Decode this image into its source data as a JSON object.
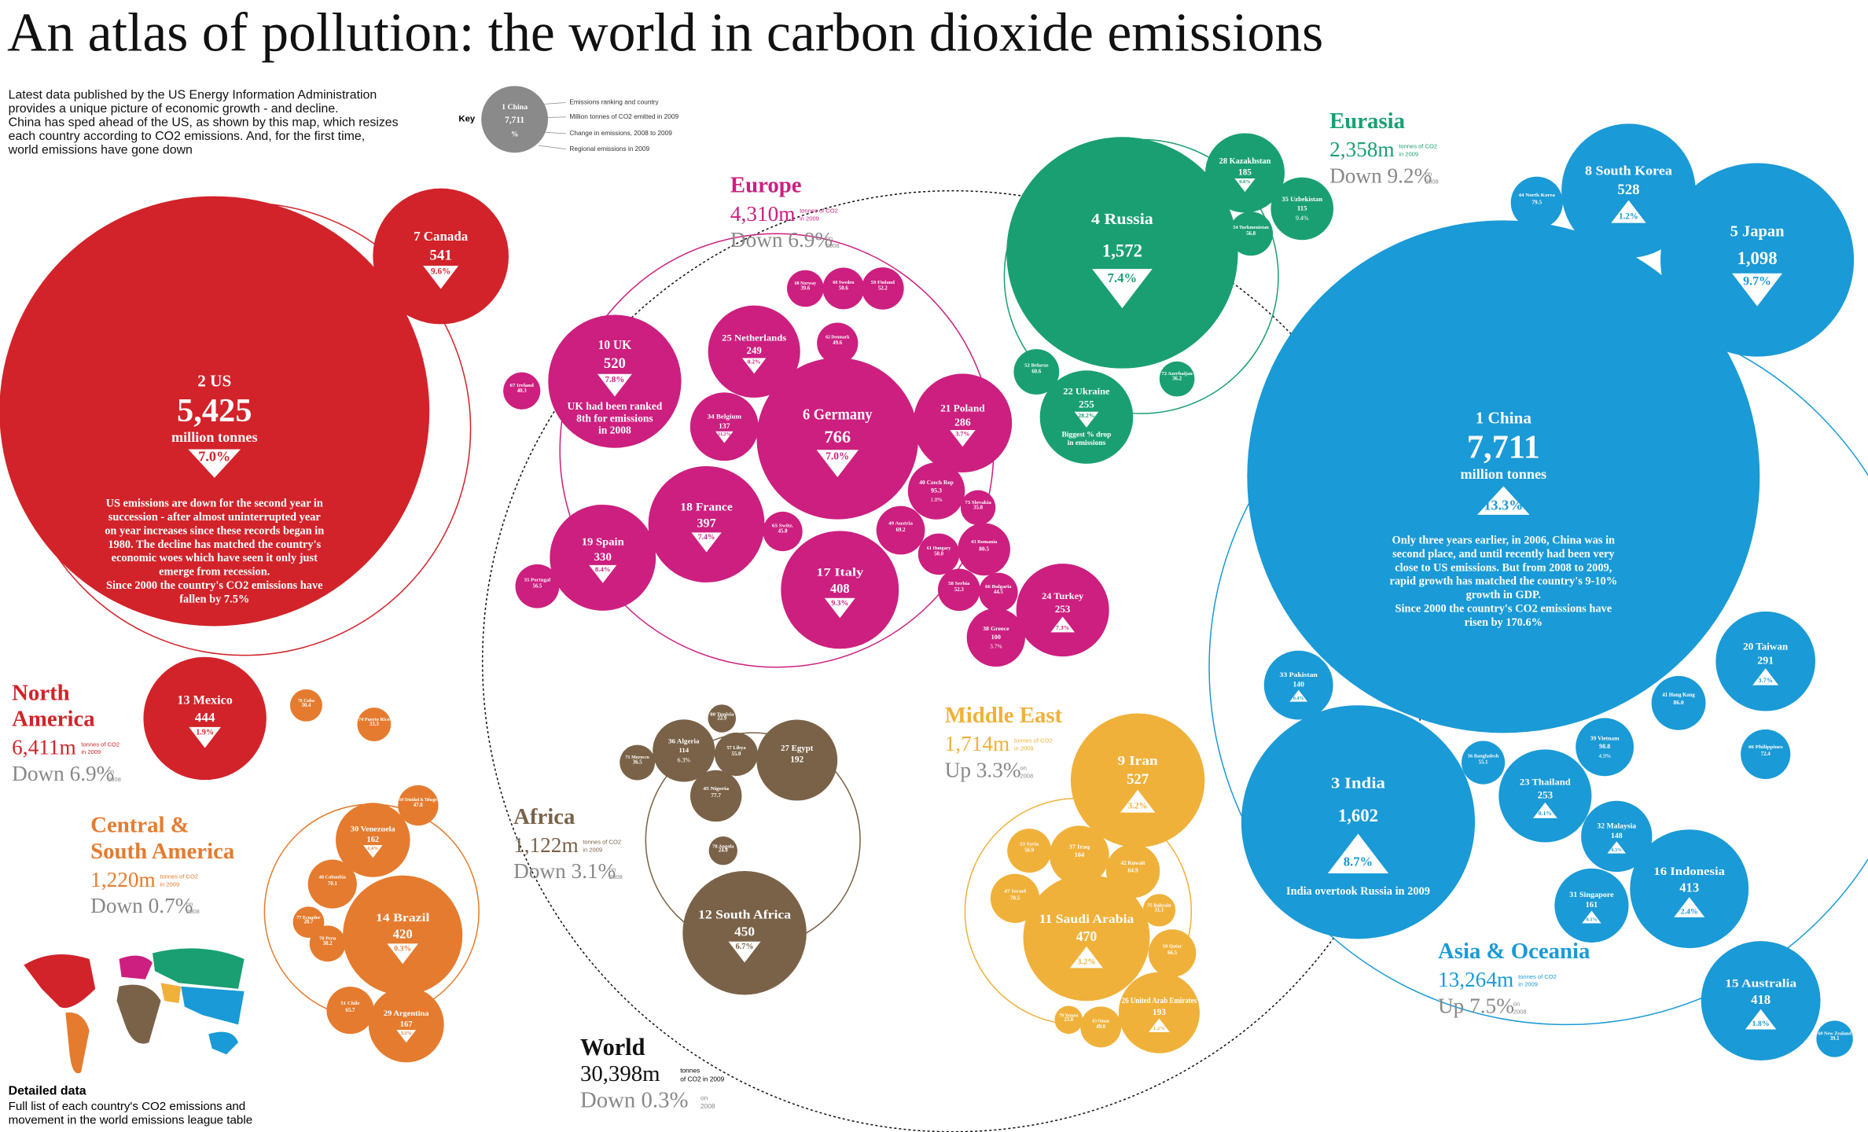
{
  "title": "An atlas of pollution: the world in carbon dioxide emissions",
  "intro": [
    "Latest data published by the US Energy Information Administration",
    "provides a unique picture of economic growth - and decline.",
    "China has sped ahead of the US, as shown by this map, which resizes",
    "each country according to CO2 emissions. And, for the first time,",
    "world emissions have gone down"
  ],
  "key": {
    "heading": "Key",
    "sample": [
      "1 China",
      "7,711",
      "%"
    ],
    "legend": [
      "Emissions ranking and country",
      "Million tonnes of CO2 emitted in 2009",
      "Change in emissions, 2008 to 2009",
      "Regional emissions in 2009"
    ]
  },
  "world": {
    "name": "World",
    "total": "30,398m",
    "unit": [
      "tonnes",
      "of CO2 in 2009"
    ],
    "change": "Down 0.3%",
    "on": [
      "on",
      "2008"
    ]
  },
  "regions": [
    {
      "name": [
        "North",
        "America"
      ],
      "color": "#d2232a",
      "total": "6,411m",
      "unit": [
        "tonnes of CO2",
        "in 2009"
      ],
      "change": "Down 6.9%",
      "on": [
        "on",
        "2008"
      ],
      "bubbles": [
        {
          "label": "2 US",
          "value": 5425,
          "value_label": "5,425",
          "unit": "million tonnes",
          "change": "7.0%",
          "trend": "down",
          "note": [
            "US emissions are down for the second year in",
            "succession - after almost uninterrupted year",
            "on year increases since these records began in",
            "1980. The decline has matched the country's",
            "economic woes which have seen it only just",
            "emerge from recession.",
            "Since 2000 the country's CO2 emissions have",
            "fallen by 7.5%"
          ]
        },
        {
          "label": "7 Canada",
          "value": 541,
          "change": "9.6%",
          "trend": "down"
        },
        {
          "label": "13 Mexico",
          "value": 444,
          "change": "1.9%",
          "trend": "down"
        }
      ]
    },
    {
      "name": [
        "Europe"
      ],
      "color": "#cc1f7f",
      "total": "4,310m",
      "unit": [
        "tonnes of CO2",
        "in 2009"
      ],
      "change": "Down 6.9%",
      "on": [
        "on",
        "2008"
      ],
      "bubbles": [
        {
          "label": "6 Germany",
          "value": 766,
          "change": "7.0%",
          "trend": "down"
        },
        {
          "label": "10 UK",
          "value": 520,
          "change": "7.8%",
          "trend": "down",
          "note": [
            "UK had been ranked",
            "8th for emissions",
            "in 2008"
          ]
        },
        {
          "label": "18 France",
          "value": 397,
          "change": "7.4%",
          "trend": "down"
        },
        {
          "label": "19 Spain",
          "value": 330,
          "change": "8.4%",
          "trend": "down"
        },
        {
          "label": "17 Italy",
          "value": 408,
          "change": "9.3%",
          "trend": "down"
        },
        {
          "label": "25 Netherlands",
          "value": 249,
          "change": "0.2%",
          "trend": "down"
        },
        {
          "label": "21 Poland",
          "value": 286,
          "change": "3.7%",
          "trend": "down"
        },
        {
          "label": "24 Turkey",
          "value": 253,
          "change": "7.3%",
          "trend": "up"
        },
        {
          "label": "34 Belgium",
          "value": 137,
          "change": "11.2%",
          "trend": "down"
        },
        {
          "label": "38 Greece",
          "value": 100,
          "change": "3.7%",
          "trend": "down"
        },
        {
          "label": "40 Czech Rep",
          "value": 95.3,
          "change": "1.8%",
          "trend": "down"
        },
        {
          "label": "43 Romania",
          "value": 80.5
        },
        {
          "label": "49 Austria",
          "value": 69.2
        },
        {
          "label": "58 Serbia",
          "value": 52.3
        },
        {
          "label": "66 Bulgaria",
          "value": 44.5
        },
        {
          "label": "73 Slovakia",
          "value": 35.8
        },
        {
          "label": "61 Hungary",
          "value": 50.0,
          "value_label": "50.0"
        },
        {
          "label": "65 Switz.",
          "value": 45.8
        },
        {
          "label": "68 Norway",
          "value": 39.6
        },
        {
          "label": "60 Sweden",
          "value": 50.6
        },
        {
          "label": "59 Finland",
          "value": 52.2
        },
        {
          "label": "62 Denmark",
          "value": 49.6
        },
        {
          "label": "67 Ireland",
          "value": 40.3
        },
        {
          "label": "55 Portugal",
          "value": 56.5
        }
      ]
    },
    {
      "name": [
        "Eurasia"
      ],
      "color": "#1a9f73",
      "total": "2,358m",
      "unit": [
        "tonnes of CO2",
        "in 2009"
      ],
      "change": "Down 9.2%",
      "on": [
        "on",
        "2008"
      ],
      "bubbles": [
        {
          "label": "4 Russia",
          "value": 1572,
          "value_label": "1,572",
          "change": "7.4%",
          "trend": "down"
        },
        {
          "label": "22 Ukraine",
          "value": 255,
          "change": "28.2%",
          "trend": "down",
          "note": [
            "Biggest % drop",
            "in emissions"
          ]
        },
        {
          "label": "28 Kazakhstan",
          "value": 185,
          "change": "9.8%",
          "trend": "down"
        },
        {
          "label": "35 Uzbekistan",
          "value": 115,
          "change": "9.4%",
          "trend": "down"
        },
        {
          "label": "54 Turkmenistan",
          "value": 56.8
        },
        {
          "label": "52 Belarus",
          "value": 60.6
        },
        {
          "label": "72 Azerbaijan",
          "value": 36.2
        }
      ]
    },
    {
      "name": [
        "Asia & Oceania"
      ],
      "color": "#1a9ad6",
      "total": "13,264m",
      "unit": [
        "tonnes of CO2",
        "in 2009"
      ],
      "change": "Up 7.5%",
      "on": [
        "on",
        "2008"
      ],
      "bubbles": [
        {
          "label": "1 China",
          "value": 7711,
          "value_label": "7,711",
          "unit": "million tonnes",
          "change": "13.3%",
          "trend": "up",
          "note": [
            "Only three years earlier, in 2006, China was in",
            "second place, and until recently had been very",
            "close to US emissions. But from 2008 to 2009,",
            "rapid growth has matched the country's 9-10%",
            "growth in GDP.",
            "Since 2000 the country's CO2 emissions have",
            "risen by 170.6%"
          ]
        },
        {
          "label": "3 India",
          "value": 1602,
          "value_label": "1,602",
          "change": "8.7%",
          "trend": "up",
          "note": [
            "India overtook Russia in 2009"
          ]
        },
        {
          "label": "5 Japan",
          "value": 1098,
          "value_label": "1,098",
          "change": "9.7%",
          "trend": "down"
        },
        {
          "label": "8 South Korea",
          "value": 528,
          "change": "1.2%",
          "trend": "up"
        },
        {
          "label": "15 Australia",
          "value": 418,
          "change": "1.8%",
          "trend": "up"
        },
        {
          "label": "16 Indonesia",
          "value": 413,
          "change": "2.4%",
          "trend": "up"
        },
        {
          "label": "20 Taiwan",
          "value": 291,
          "change": "3.7%",
          "trend": "up"
        },
        {
          "label": "23 Thailand",
          "value": 253,
          "change": "0.1%",
          "trend": "up"
        },
        {
          "label": "31 Singapore",
          "value": 161,
          "change": "0.3%",
          "trend": "up"
        },
        {
          "label": "32 Malaysia",
          "value": 148,
          "change": "0.3%",
          "trend": "up"
        },
        {
          "label": "33 Pakistan",
          "value": 140,
          "change": "0.4%",
          "trend": "up"
        },
        {
          "label": "39 Vietnam",
          "value": 98.8,
          "change": "4.9%",
          "trend": "up"
        },
        {
          "label": "41 Hong Kong",
          "value": 86.0,
          "value_label": "86.0"
        },
        {
          "label": "44 North Korea",
          "value": 79.5
        },
        {
          "label": "46 Philippines",
          "value": 72.4
        },
        {
          "label": "56 Bangladesh",
          "value": 55.1
        },
        {
          "label": "69 New Zealand",
          "value": 39.1
        }
      ]
    },
    {
      "name": [
        "Middle East"
      ],
      "color": "#f0b13a",
      "total": "1,714m",
      "unit": [
        "tonnes of CO2",
        "in 2009"
      ],
      "change": "Up 3.3%",
      "on": [
        "on",
        "2008"
      ],
      "bubbles": [
        {
          "label": "9 Iran",
          "value": 527,
          "change": "3.2%",
          "trend": "up"
        },
        {
          "label": "11 Saudi Arabia",
          "value": 470,
          "change": "3.2%",
          "trend": "up"
        },
        {
          "label": "26 United Arab Emirates",
          "value": 193,
          "change": "1.2%",
          "trend": "up"
        },
        {
          "label": "37 Iraq",
          "value": 104
        },
        {
          "label": "42 Kuwait",
          "value": 84.9
        },
        {
          "label": "47 Israel",
          "value": 70.5
        },
        {
          "label": "53 Syria",
          "value": 56.9
        },
        {
          "label": "50 Qatar",
          "value": 66.5
        },
        {
          "label": "63 Oman",
          "value": 49.0,
          "value_label": "49.0"
        },
        {
          "label": "75 Bahrain",
          "value": 31.1
        },
        {
          "label": "79 Yemen",
          "value": 23.0,
          "value_label": "23.0"
        }
      ]
    },
    {
      "name": [
        "Africa"
      ],
      "color": "#7a6248",
      "total": "1,122m",
      "unit": [
        "tonnes of CO2",
        "in 2009"
      ],
      "change": "Down 3.1%",
      "on": [
        "on",
        "2008"
      ],
      "bubbles": [
        {
          "label": "12 South Africa",
          "value": 450,
          "change": "6.7%",
          "trend": "down"
        },
        {
          "label": "27 Egypt",
          "value": 192
        },
        {
          "label": "36 Algeria",
          "value": 114,
          "change": "6.3%",
          "trend": "up"
        },
        {
          "label": "45 Nigeria",
          "value": 77.7
        },
        {
          "label": "57 Libya",
          "value": 55.0,
          "value_label": "55.0"
        },
        {
          "label": "71 Morocco",
          "value": 36.5
        },
        {
          "label": "78 Angola",
          "value": 24.0,
          "value_label": "24.0"
        },
        {
          "label": "80 Tunisia",
          "value": 22.9
        }
      ]
    },
    {
      "name": [
        "Central &",
        "South America"
      ],
      "color": "#e57b2e",
      "total": "1,220m",
      "unit": [
        "tonnes of CO2",
        "in 2009"
      ],
      "change": "Down 0.7%",
      "on": [
        "on",
        "2008"
      ],
      "bubbles": [
        {
          "label": "14 Brazil",
          "value": 420,
          "change": "0.3%",
          "trend": "down"
        },
        {
          "label": "29 Argentina",
          "value": 167,
          "change": "3.2%",
          "trend": "down"
        },
        {
          "label": "30 Venezuela",
          "value": 162,
          "change": "1.4%",
          "trend": "down"
        },
        {
          "label": "48 Colombia",
          "value": 70.1
        },
        {
          "label": "51 Chile",
          "value": 65.7
        },
        {
          "label": "64 Trinidad & Tobago",
          "value": 47.8
        },
        {
          "label": "70 Peru",
          "value": 38.2
        },
        {
          "label": "77 Ecuador",
          "value": 28.7
        },
        {
          "label": "74 Puerto Rico",
          "value": 33.3
        },
        {
          "label": "76 Cuba",
          "value": 30.4
        }
      ]
    }
  ],
  "footer": {
    "heading": "Detailed data",
    "lines": [
      "Full list of each country's CO2 emissions and",
      "movement in the world emissions league table"
    ]
  }
}
